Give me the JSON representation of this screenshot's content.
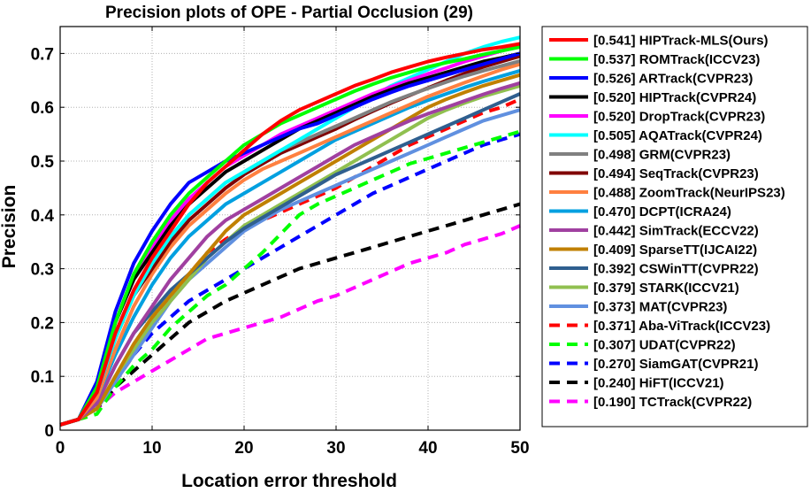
{
  "chart_data": {
    "type": "line",
    "title": "Precision plots of OPE - Partial Occlusion (29)",
    "xlabel": "Location error threshold",
    "ylabel": "Precision",
    "xlim": [
      0,
      50
    ],
    "ylim": [
      0,
      0.75
    ],
    "xticks": [
      0,
      10,
      20,
      30,
      40,
      50
    ],
    "yticks": [
      0,
      0.1,
      0.2,
      0.3,
      0.4,
      0.5,
      0.6,
      0.7
    ],
    "grid": true,
    "legend_position": "outside-right",
    "x": [
      0,
      2,
      4,
      6,
      8,
      10,
      12,
      14,
      16,
      18,
      20,
      22,
      24,
      26,
      28,
      30,
      32,
      34,
      36,
      38,
      40,
      42,
      44,
      46,
      48,
      50
    ],
    "series": [
      {
        "name": "[0.541] HIPTrack-MLS(Ours)",
        "color": "#ff0000",
        "dash": false,
        "values": [
          0.01,
          0.02,
          0.07,
          0.18,
          0.26,
          0.32,
          0.37,
          0.42,
          0.46,
          0.49,
          0.52,
          0.55,
          0.575,
          0.595,
          0.61,
          0.625,
          0.64,
          0.652,
          0.665,
          0.675,
          0.685,
          0.693,
          0.7,
          0.707,
          0.712,
          0.718
        ]
      },
      {
        "name": "[0.537] ROMTrack(ICCV23)",
        "color": "#00ff00",
        "dash": false,
        "values": [
          0.01,
          0.02,
          0.08,
          0.2,
          0.29,
          0.35,
          0.4,
          0.44,
          0.47,
          0.5,
          0.53,
          0.55,
          0.57,
          0.585,
          0.6,
          0.615,
          0.63,
          0.643,
          0.655,
          0.665,
          0.675,
          0.683,
          0.69,
          0.698,
          0.705,
          0.712
        ]
      },
      {
        "name": "[0.526] ARTrack(CVPR23)",
        "color": "#0000ff",
        "dash": false,
        "values": [
          0.01,
          0.02,
          0.09,
          0.22,
          0.31,
          0.37,
          0.42,
          0.46,
          0.48,
          0.5,
          0.515,
          0.53,
          0.545,
          0.56,
          0.57,
          0.585,
          0.6,
          0.615,
          0.628,
          0.64,
          0.65,
          0.66,
          0.67,
          0.68,
          0.69,
          0.7
        ]
      },
      {
        "name": "[0.520] HIPTrack(CVPR24)",
        "color": "#000000",
        "dash": false,
        "values": [
          0.01,
          0.02,
          0.08,
          0.2,
          0.28,
          0.33,
          0.38,
          0.42,
          0.45,
          0.48,
          0.5,
          0.52,
          0.54,
          0.56,
          0.575,
          0.59,
          0.605,
          0.62,
          0.633,
          0.645,
          0.655,
          0.665,
          0.675,
          0.685,
          0.692,
          0.7
        ]
      },
      {
        "name": "[0.520] DropTrack(CVPR23)",
        "color": "#ff00ff",
        "dash": false,
        "values": [
          0.01,
          0.02,
          0.08,
          0.2,
          0.28,
          0.34,
          0.39,
          0.43,
          0.46,
          0.49,
          0.51,
          0.53,
          0.55,
          0.565,
          0.58,
          0.595,
          0.61,
          0.625,
          0.638,
          0.65,
          0.662,
          0.673,
          0.685,
          0.695,
          0.705,
          0.715
        ]
      },
      {
        "name": "[0.505] AQATrack(CVPR24)",
        "color": "#00ffff",
        "dash": false,
        "values": [
          0.01,
          0.02,
          0.07,
          0.17,
          0.25,
          0.31,
          0.36,
          0.4,
          0.43,
          0.46,
          0.48,
          0.5,
          0.52,
          0.54,
          0.56,
          0.58,
          0.6,
          0.62,
          0.64,
          0.655,
          0.67,
          0.685,
          0.7,
          0.712,
          0.722,
          0.73
        ]
      },
      {
        "name": "[0.498] GRM(CVPR23)",
        "color": "#808080",
        "dash": false,
        "values": [
          0.01,
          0.02,
          0.07,
          0.17,
          0.25,
          0.31,
          0.36,
          0.4,
          0.43,
          0.46,
          0.48,
          0.5,
          0.52,
          0.535,
          0.55,
          0.565,
          0.58,
          0.595,
          0.61,
          0.623,
          0.635,
          0.647,
          0.658,
          0.668,
          0.677,
          0.686
        ]
      },
      {
        "name": "[0.494] SeqTrack(CVPR23)",
        "color": "#800000",
        "dash": false,
        "values": [
          0.01,
          0.02,
          0.07,
          0.17,
          0.25,
          0.3,
          0.35,
          0.39,
          0.42,
          0.45,
          0.475,
          0.495,
          0.515,
          0.53,
          0.545,
          0.56,
          0.577,
          0.593,
          0.608,
          0.622,
          0.636,
          0.65,
          0.663,
          0.675,
          0.685,
          0.695
        ]
      },
      {
        "name": "[0.488] ZoomTrack(NeurIPS23)",
        "color": "#ff8040",
        "dash": false,
        "values": [
          0.01,
          0.02,
          0.06,
          0.15,
          0.23,
          0.29,
          0.34,
          0.38,
          0.41,
          0.44,
          0.465,
          0.485,
          0.5,
          0.515,
          0.53,
          0.545,
          0.56,
          0.575,
          0.59,
          0.605,
          0.62,
          0.633,
          0.646,
          0.658,
          0.67,
          0.68
        ]
      },
      {
        "name": "[0.470] DCPT(ICRA24)",
        "color": "#00a0e0",
        "dash": false,
        "values": [
          0.01,
          0.02,
          0.06,
          0.14,
          0.21,
          0.27,
          0.32,
          0.36,
          0.39,
          0.42,
          0.44,
          0.46,
          0.48,
          0.5,
          0.52,
          0.54,
          0.555,
          0.57,
          0.585,
          0.6,
          0.613,
          0.625,
          0.637,
          0.648,
          0.658,
          0.668
        ]
      },
      {
        "name": "[0.442] SimTrack(ECCV22)",
        "color": "#a040a0",
        "dash": false,
        "values": [
          0.01,
          0.02,
          0.05,
          0.12,
          0.18,
          0.23,
          0.28,
          0.32,
          0.36,
          0.39,
          0.41,
          0.43,
          0.45,
          0.47,
          0.49,
          0.51,
          0.53,
          0.545,
          0.56,
          0.575,
          0.588,
          0.6,
          0.612,
          0.624,
          0.635,
          0.645
        ]
      },
      {
        "name": "[0.409] SparseTT(IJCAI22)",
        "color": "#c08000",
        "dash": false,
        "values": [
          0.01,
          0.02,
          0.04,
          0.1,
          0.16,
          0.21,
          0.25,
          0.29,
          0.33,
          0.37,
          0.4,
          0.42,
          0.44,
          0.46,
          0.48,
          0.5,
          0.52,
          0.54,
          0.56,
          0.58,
          0.6,
          0.615,
          0.628,
          0.64,
          0.65,
          0.66
        ]
      },
      {
        "name": "[0.392] CSWinTT(CVPR22)",
        "color": "#2f5f8f",
        "dash": false,
        "values": [
          0.01,
          0.02,
          0.05,
          0.12,
          0.18,
          0.22,
          0.26,
          0.29,
          0.32,
          0.35,
          0.375,
          0.395,
          0.415,
          0.435,
          0.455,
          0.475,
          0.49,
          0.505,
          0.52,
          0.535,
          0.55,
          0.565,
          0.58,
          0.595,
          0.61,
          0.625
        ]
      },
      {
        "name": "[0.379] STARK(ICCV21)",
        "color": "#90c050",
        "dash": false,
        "values": [
          0.01,
          0.02,
          0.04,
          0.1,
          0.15,
          0.2,
          0.24,
          0.28,
          0.32,
          0.35,
          0.38,
          0.4,
          0.42,
          0.44,
          0.46,
          0.48,
          0.5,
          0.52,
          0.54,
          0.56,
          0.58,
          0.595,
          0.608,
          0.62,
          0.63,
          0.64
        ]
      },
      {
        "name": "[0.373] MAT(CVPR23)",
        "color": "#6090e0",
        "dash": false,
        "values": [
          0.01,
          0.02,
          0.04,
          0.09,
          0.14,
          0.19,
          0.24,
          0.28,
          0.31,
          0.34,
          0.37,
          0.39,
          0.41,
          0.425,
          0.44,
          0.455,
          0.47,
          0.485,
          0.5,
          0.515,
          0.53,
          0.545,
          0.56,
          0.575,
          0.585,
          0.595
        ]
      },
      {
        "name": "[0.371] Aba-ViTrack(ICCV23)",
        "color": "#ff0000",
        "dash": true,
        "values": [
          0.01,
          0.02,
          0.04,
          0.09,
          0.14,
          0.2,
          0.25,
          0.29,
          0.33,
          0.355,
          0.375,
          0.39,
          0.405,
          0.42,
          0.435,
          0.45,
          0.47,
          0.49,
          0.51,
          0.53,
          0.545,
          0.56,
          0.575,
          0.59,
          0.6,
          0.615
        ]
      },
      {
        "name": "[0.307] UDAT(CVPR22)",
        "color": "#00ff00",
        "dash": true,
        "values": [
          0.01,
          0.02,
          0.03,
          0.08,
          0.12,
          0.15,
          0.19,
          0.22,
          0.25,
          0.27,
          0.3,
          0.33,
          0.365,
          0.4,
          0.42,
          0.435,
          0.45,
          0.465,
          0.48,
          0.495,
          0.505,
          0.515,
          0.525,
          0.535,
          0.545,
          0.555
        ]
      },
      {
        "name": "[0.270] SiamGAT(CVPR21)",
        "color": "#0000ff",
        "dash": true,
        "values": [
          0.01,
          0.02,
          0.04,
          0.09,
          0.14,
          0.18,
          0.21,
          0.24,
          0.26,
          0.28,
          0.3,
          0.32,
          0.34,
          0.36,
          0.38,
          0.4,
          0.42,
          0.44,
          0.455,
          0.47,
          0.485,
          0.5,
          0.515,
          0.53,
          0.54,
          0.55
        ]
      },
      {
        "name": "[0.240] HiFT(ICCV21)",
        "color": "#000000",
        "dash": true,
        "values": [
          0.01,
          0.02,
          0.04,
          0.08,
          0.11,
          0.14,
          0.17,
          0.2,
          0.22,
          0.24,
          0.255,
          0.27,
          0.285,
          0.3,
          0.31,
          0.32,
          0.33,
          0.34,
          0.35,
          0.36,
          0.37,
          0.38,
          0.39,
          0.4,
          0.41,
          0.42
        ]
      },
      {
        "name": "[0.190] TCTrack(CVPR22)",
        "color": "#ff00ff",
        "dash": true,
        "values": [
          0.01,
          0.02,
          0.04,
          0.07,
          0.09,
          0.11,
          0.13,
          0.15,
          0.17,
          0.18,
          0.19,
          0.2,
          0.21,
          0.225,
          0.24,
          0.25,
          0.265,
          0.28,
          0.295,
          0.31,
          0.32,
          0.33,
          0.345,
          0.355,
          0.365,
          0.38
        ]
      }
    ]
  }
}
